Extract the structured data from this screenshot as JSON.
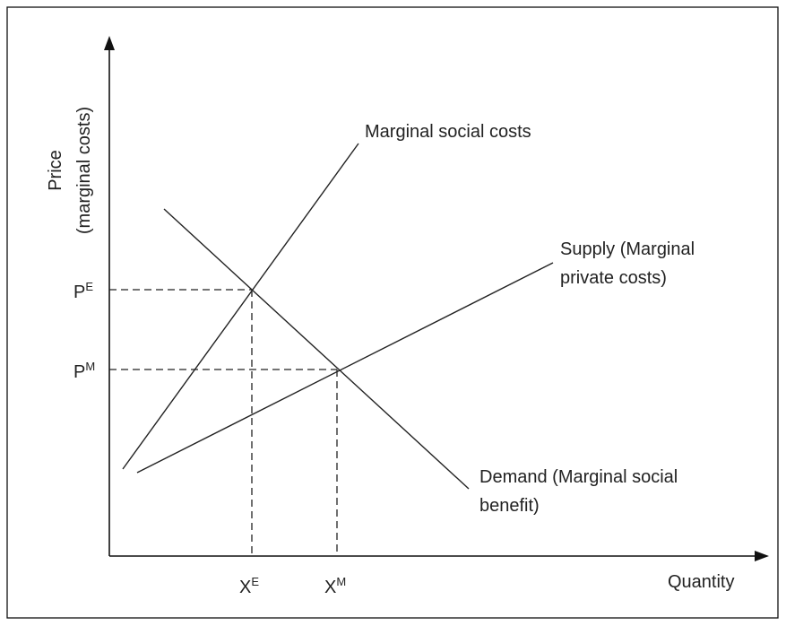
{
  "axes": {
    "y_label": [
      "Price",
      "(marginal costs)"
    ],
    "x_label": "Quantity"
  },
  "curves": {
    "marginal_social_costs": {
      "label": [
        "Marginal social costs"
      ]
    },
    "supply": {
      "label": [
        "Supply (Marginal",
        "private costs)"
      ]
    },
    "demand": {
      "label": [
        "Demand (Marginal social",
        "benefit)"
      ]
    }
  },
  "points": {
    "p_e": {
      "base": "P",
      "sup": "E"
    },
    "p_m": {
      "base": "P",
      "sup": "M"
    },
    "x_e": {
      "base": "X",
      "sup": "E"
    },
    "x_m": {
      "base": "X",
      "sup": "M"
    }
  }
}
